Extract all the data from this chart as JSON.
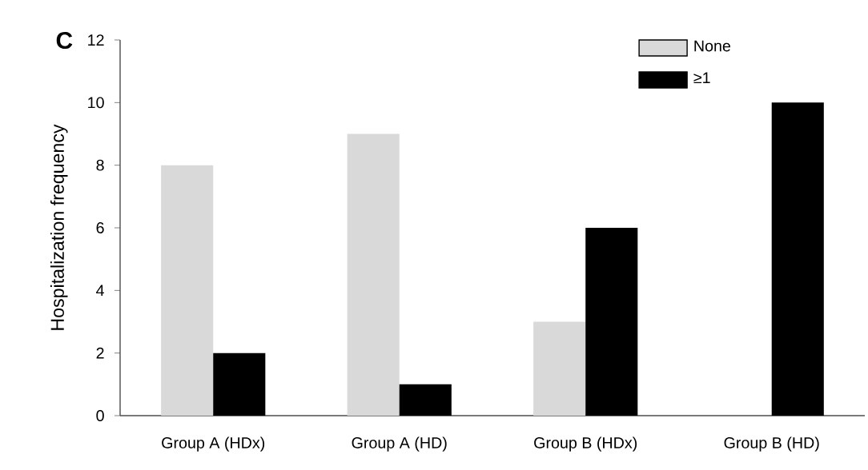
{
  "chart_data": {
    "type": "bar",
    "ylabel": "Hospitalization frequency",
    "annotations": [
      "C"
    ],
    "categories": [
      "Group A (HDx)",
      "Group A (HD)",
      "Group B (HDx)",
      "Group B (HD)"
    ],
    "series": [
      {
        "name": "None",
        "color": "#d9d9d9",
        "values": [
          8,
          9,
          3,
          0
        ]
      },
      {
        "name": "≥1",
        "color": "#000000",
        "values": [
          2,
          1,
          6,
          10
        ]
      }
    ],
    "ylim": [
      0,
      12
    ],
    "yticks": [
      0,
      2,
      4,
      6,
      8,
      10,
      12
    ],
    "grid": false,
    "legend": "top right"
  }
}
